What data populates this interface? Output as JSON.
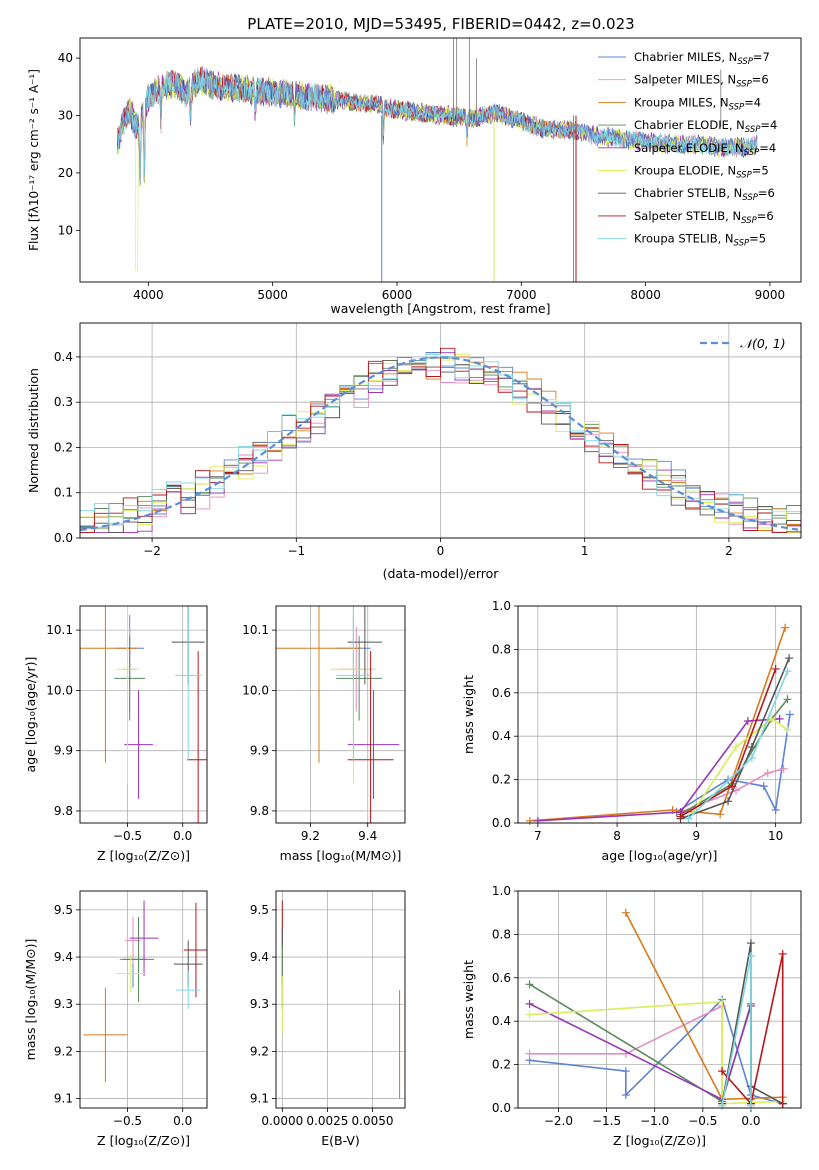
{
  "figure_title": "PLATE=2010, MJD=53495, FIBERID=0442, z=0.023",
  "model_colors": [
    "#5b84d6",
    "#e38ec2",
    "#d87b1d",
    "#5a8a5a",
    "#9a35b8",
    "#d9ee5a",
    "#555555",
    "#b5161b",
    "#7fd6e0"
  ],
  "chart_data": [
    {
      "id": "spectrum",
      "type": "line",
      "title": "PLATE=2010, MJD=53495, FIBERID=0442, z=0.023",
      "xlabel": "wavelength [Angstrom, rest frame]",
      "ylabel": "Flux [fλ10⁻¹⁷ erg cm⁻² s⁻¹ A⁻¹]",
      "xlim": [
        3450,
        9250
      ],
      "ylim": [
        1,
        43.5
      ],
      "xticks": [
        "4000",
        "5000",
        "6000",
        "7000",
        "8000",
        "9000"
      ],
      "yticks": [
        "10",
        "20",
        "30",
        "40"
      ],
      "x": [
        3750,
        3800,
        3850,
        3900,
        3950,
        4000,
        4100,
        4200,
        4300,
        4400,
        4500,
        4600,
        4800,
        5000,
        5200,
        5400,
        5600,
        5800,
        6000,
        6200,
        6400,
        6600,
        6800,
        7000,
        7200,
        7400,
        7600,
        7800,
        8000,
        8200,
        8400,
        8600,
        8800,
        8900
      ],
      "y": [
        25,
        29,
        31,
        28,
        30,
        33,
        35,
        35.5,
        34,
        36,
        35.5,
        35,
        34.5,
        34,
        33.5,
        33,
        32.5,
        32,
        31,
        30.5,
        30,
        29.5,
        30.5,
        29,
        27.5,
        27.5,
        26.5,
        26,
        25.5,
        25,
        25,
        24.5,
        24.5,
        25
      ],
      "legend": [
        {
          "label": "Chabrier MILES, N",
          "sub": "SSP",
          "value": "=7"
        },
        {
          "label": "Salpeter MILES, N",
          "sub": "SSP",
          "value": "=6"
        },
        {
          "label": "Kroupa MILES, N",
          "sub": "SSP",
          "value": "=4"
        },
        {
          "label": "Chabrier ELODIE, N",
          "sub": "SSP",
          "value": "=4"
        },
        {
          "label": "Salpeter ELODIE, N",
          "sub": "SSP",
          "value": "=4"
        },
        {
          "label": "Kroupa ELODIE, N",
          "sub": "SSP",
          "value": "=5"
        },
        {
          "label": "Chabrier STELIB, N",
          "sub": "SSP",
          "value": "=6"
        },
        {
          "label": "Salpeter STELIB, N",
          "sub": "SSP",
          "value": "=6"
        },
        {
          "label": "Kroupa STELIB, N",
          "sub": "SSP",
          "value": "=5"
        }
      ],
      "legend_position": "upper right",
      "grid": false
    },
    {
      "id": "residuals",
      "type": "histogram",
      "xlabel": "(data-model)/error",
      "ylabel": "Normed distribution",
      "xlim": [
        -2.5,
        2.5
      ],
      "ylim": [
        0,
        0.475
      ],
      "xticks": [
        "−2",
        "−1",
        "0",
        "1",
        "2"
      ],
      "yticks": [
        "0.0",
        "0.1",
        "0.2",
        "0.3",
        "0.4"
      ],
      "bin_width": 0.1,
      "reference": {
        "label": "𝒩(0, 1)",
        "mean": 0,
        "sigma": 1
      },
      "legend_position": "upper right",
      "grid": true
    },
    {
      "id": "age_vs_Z",
      "type": "errorbar",
      "xlabel": "Z [log₁₀(Z/Z⊙)]",
      "ylabel": "age  [log₁₀(age/yr)]",
      "xlim": [
        -0.93,
        0.22
      ],
      "ylim": [
        9.78,
        10.14
      ],
      "xticks": [
        "−0.5",
        "0.0"
      ],
      "xtick_values": [
        -0.5,
        0.0
      ],
      "yticks": [
        "9.8",
        "9.9",
        "10.0",
        "10.1"
      ],
      "ytick_values": [
        9.8,
        9.9,
        10.0,
        10.1
      ],
      "points": [
        {
          "x": -0.48,
          "y": 10.07,
          "xerr": 0.13,
          "yerr": 0.055,
          "c": 0
        },
        {
          "x": -0.48,
          "y": 10.035,
          "xerr": 0.06,
          "yerr": 0.07,
          "c": 1
        },
        {
          "x": -0.7,
          "y": 10.07,
          "xerr": 0.3,
          "yerr": 0.19,
          "c": 2
        },
        {
          "x": -0.48,
          "y": 10.02,
          "xerr": 0.14,
          "yerr": 0.07,
          "c": 3
        },
        {
          "x": -0.4,
          "y": 9.91,
          "xerr": 0.13,
          "yerr": 0.09,
          "c": 4
        },
        {
          "x": -0.5,
          "y": 10.035,
          "xerr": 0.1,
          "yerr": 0.19,
          "c": 5
        },
        {
          "x": 0.05,
          "y": 10.08,
          "xerr": 0.15,
          "yerr": 0.07,
          "c": 6
        },
        {
          "x": 0.14,
          "y": 9.885,
          "xerr": 0.1,
          "yerr": 0.18,
          "c": 7
        },
        {
          "x": 0.05,
          "y": 10.025,
          "xerr": 0.12,
          "yerr": 0.14,
          "c": 8
        }
      ],
      "grid": true
    },
    {
      "id": "age_vs_mass",
      "type": "errorbar",
      "xlabel": "mass [log₁₀(M/M⊙)]",
      "ylabel": "",
      "xlim": [
        9.08,
        9.53
      ],
      "ylim": [
        9.78,
        10.14
      ],
      "xticks": [
        "9.2",
        "9.4"
      ],
      "xtick_values": [
        9.2,
        9.4
      ],
      "yticks": [
        "9.8",
        "9.9",
        "10.0",
        "10.1"
      ],
      "ytick_values": [
        9.8,
        9.9,
        10.0,
        10.1
      ],
      "points": [
        {
          "x": 9.35,
          "y": 10.07,
          "xerr": 0.06,
          "yerr": 0.055,
          "c": 0
        },
        {
          "x": 9.36,
          "y": 10.035,
          "xerr": 0.06,
          "yerr": 0.07,
          "c": 1
        },
        {
          "x": 9.23,
          "y": 10.07,
          "xerr": 0.15,
          "yerr": 0.19,
          "c": 2
        },
        {
          "x": 9.37,
          "y": 10.02,
          "xerr": 0.08,
          "yerr": 0.07,
          "c": 3
        },
        {
          "x": 9.42,
          "y": 9.91,
          "xerr": 0.09,
          "yerr": 0.09,
          "c": 4
        },
        {
          "x": 9.35,
          "y": 10.035,
          "xerr": 0.08,
          "yerr": 0.19,
          "c": 5
        },
        {
          "x": 9.39,
          "y": 10.08,
          "xerr": 0.06,
          "yerr": 0.07,
          "c": 6
        },
        {
          "x": 9.41,
          "y": 9.885,
          "xerr": 0.08,
          "yerr": 0.18,
          "c": 7
        },
        {
          "x": 9.35,
          "y": 10.025,
          "xerr": 0.06,
          "yerr": 0.14,
          "c": 8
        }
      ],
      "grid": true
    },
    {
      "id": "weight_vs_age",
      "type": "line",
      "xlabel": "age  [log₁₀(age/yr)]",
      "ylabel": "mass weight",
      "xlim": [
        6.75,
        10.32
      ],
      "ylim": [
        0,
        1.0
      ],
      "xticks": [
        "7",
        "8",
        "9",
        "10"
      ],
      "xtick_values": [
        7,
        8,
        9,
        10
      ],
      "yticks": [
        "0.0",
        "0.2",
        "0.4",
        "0.6",
        "0.8",
        "1.0"
      ],
      "ytick_values": [
        0,
        0.2,
        0.4,
        0.6,
        0.8,
        1.0
      ],
      "series": [
        {
          "c": 0,
          "x": [
            8.75,
            9.4,
            9.85,
            10.0,
            10.18
          ],
          "y": [
            0.05,
            0.2,
            0.17,
            0.06,
            0.5
          ]
        },
        {
          "c": 1,
          "x": [
            8.8,
            9.5,
            9.9,
            10.1
          ],
          "y": [
            0.05,
            0.15,
            0.23,
            0.25
          ]
        },
        {
          "c": 2,
          "x": [
            6.9,
            8.7,
            9.3,
            10.12
          ],
          "y": [
            0.01,
            0.06,
            0.04,
            0.9
          ]
        },
        {
          "c": 3,
          "x": [
            8.8,
            9.45,
            9.95,
            10.15
          ],
          "y": [
            0.04,
            0.18,
            0.48,
            0.57
          ]
        },
        {
          "c": 4,
          "x": [
            7.0,
            8.8,
            9.65,
            10.05
          ],
          "y": [
            0.01,
            0.05,
            0.47,
            0.48
          ]
        },
        {
          "c": 5,
          "x": [
            8.9,
            9.5,
            9.95,
            10.15
          ],
          "y": [
            0.02,
            0.35,
            0.48,
            0.43
          ]
        },
        {
          "c": 6,
          "x": [
            8.8,
            9.4,
            9.7,
            10.17
          ],
          "y": [
            0.02,
            0.1,
            0.35,
            0.76
          ]
        },
        {
          "c": 7,
          "x": [
            8.8,
            9.45,
            10.0
          ],
          "y": [
            0.03,
            0.17,
            0.71
          ]
        },
        {
          "c": 8,
          "x": [
            8.9,
            9.7,
            10.15
          ],
          "y": [
            0.02,
            0.3,
            0.7
          ]
        }
      ],
      "grid": true
    },
    {
      "id": "mass_vs_Z",
      "type": "errorbar",
      "xlabel": "Z [log₁₀(Z/Z⊙)]",
      "ylabel": "mass [log₁₀(M/M⊙)]",
      "xlim": [
        -0.93,
        0.22
      ],
      "ylim": [
        9.08,
        9.54
      ],
      "xticks": [
        "−0.5",
        "0.0"
      ],
      "xtick_values": [
        -0.5,
        0.0
      ],
      "yticks": [
        "9.1",
        "9.2",
        "9.3",
        "9.4",
        "9.5"
      ],
      "ytick_values": [
        9.1,
        9.2,
        9.3,
        9.4,
        9.5
      ],
      "points": [
        {
          "x": -0.45,
          "y": 9.395,
          "xerr": 0.12,
          "yerr": 0.06,
          "c": 0
        },
        {
          "x": -0.45,
          "y": 9.435,
          "xerr": 0.07,
          "yerr": 0.05,
          "c": 1
        },
        {
          "x": -0.7,
          "y": 9.235,
          "xerr": 0.2,
          "yerr": 0.1,
          "c": 2
        },
        {
          "x": -0.4,
          "y": 9.395,
          "xerr": 0.14,
          "yerr": 0.09,
          "c": 3
        },
        {
          "x": -0.35,
          "y": 9.44,
          "xerr": 0.13,
          "yerr": 0.08,
          "c": 4
        },
        {
          "x": -0.47,
          "y": 9.365,
          "xerr": 0.14,
          "yerr": 0.04,
          "c": 5
        },
        {
          "x": 0.05,
          "y": 9.385,
          "xerr": 0.13,
          "yerr": 0.05,
          "c": 6
        },
        {
          "x": 0.12,
          "y": 9.415,
          "xerr": 0.11,
          "yerr": 0.1,
          "c": 7
        },
        {
          "x": 0.05,
          "y": 9.33,
          "xerr": 0.11,
          "yerr": 0.04,
          "c": 8
        }
      ],
      "grid": true
    },
    {
      "id": "mass_vs_ebv",
      "type": "errorbar",
      "xlabel": "E(B-V)",
      "ylabel": "",
      "xlim": [
        -0.00035,
        0.0068
      ],
      "ylim": [
        9.08,
        9.54
      ],
      "xticks": [
        "0.0000",
        "0.0025",
        "0.0050"
      ],
      "xtick_values": [
        0,
        0.0025,
        0.005
      ],
      "yticks": [
        "9.1",
        "9.2",
        "9.3",
        "9.4",
        "9.5"
      ],
      "ytick_values": [
        9.1,
        9.2,
        9.3,
        9.4,
        9.5
      ],
      "points": [
        {
          "x": 0,
          "y": 9.47,
          "xerr": 0,
          "yerr": 0.05,
          "c": 7
        },
        {
          "x": 0,
          "y": 9.4,
          "xerr": 0,
          "yerr": 0.06,
          "c": 6
        },
        {
          "x": 0,
          "y": 9.36,
          "xerr": 0,
          "yerr": 0.07,
          "c": 3
        },
        {
          "x": 0,
          "y": 9.3,
          "xerr": 0,
          "yerr": 0.06,
          "c": 5
        },
        {
          "x": 0.0065,
          "y": 9.215,
          "xerr": 0,
          "yerr": 0.115,
          "c": 2
        }
      ],
      "grid": true
    },
    {
      "id": "weight_vs_Z",
      "type": "line",
      "xlabel": "Z [log₁₀(Z/Z⊙)]",
      "ylabel": "mass weight",
      "xlim": [
        -2.42,
        0.52
      ],
      "ylim": [
        0,
        1.0
      ],
      "xticks": [
        "−2.0",
        "−1.5",
        "−1.0",
        "−0.5",
        "0.0"
      ],
      "xtick_values": [
        -2,
        -1.5,
        -1,
        -0.5,
        0
      ],
      "yticks": [
        "0.0",
        "0.2",
        "0.4",
        "0.6",
        "0.8",
        "1.0"
      ],
      "ytick_values": [
        0,
        0.2,
        0.4,
        0.6,
        0.8,
        1.0
      ],
      "series": [
        {
          "c": 0,
          "x": [
            -2.3,
            -1.3,
            -1.3,
            -0.3,
            0.0,
            0.33
          ],
          "y": [
            0.22,
            0.17,
            0.06,
            0.5,
            0.06,
            0.02
          ]
        },
        {
          "c": 1,
          "x": [
            -2.3,
            -1.3,
            -0.3,
            -0.3
          ],
          "y": [
            0.25,
            0.25,
            0.47,
            0.04
          ]
        },
        {
          "c": 2,
          "x": [
            -1.3,
            -0.3,
            0.33
          ],
          "y": [
            0.9,
            0.04,
            0.05
          ]
        },
        {
          "c": 3,
          "x": [
            -2.3,
            -0.3,
            0.0,
            0.0
          ],
          "y": [
            0.57,
            0.03,
            0.48,
            0.04
          ]
        },
        {
          "c": 4,
          "x": [
            -2.3,
            -0.3,
            0.0,
            0.0
          ],
          "y": [
            0.48,
            0.04,
            0.47,
            0.02
          ]
        },
        {
          "c": 5,
          "x": [
            -2.3,
            -0.3,
            -0.3,
            0.33
          ],
          "y": [
            0.43,
            0.49,
            0.02,
            0.03
          ]
        },
        {
          "c": 6,
          "x": [
            -0.3,
            0.0,
            0.0,
            0.33
          ],
          "y": [
            0.02,
            0.76,
            0.1,
            0.02
          ]
        },
        {
          "c": 7,
          "x": [
            -0.3,
            0.0,
            0.33,
            0.33
          ],
          "y": [
            0.17,
            0.02,
            0.71,
            0.02
          ]
        },
        {
          "c": 8,
          "x": [
            -0.3,
            0.0,
            0.0
          ],
          "y": [
            0.01,
            0.7,
            0.01
          ]
        }
      ],
      "grid": true
    }
  ]
}
